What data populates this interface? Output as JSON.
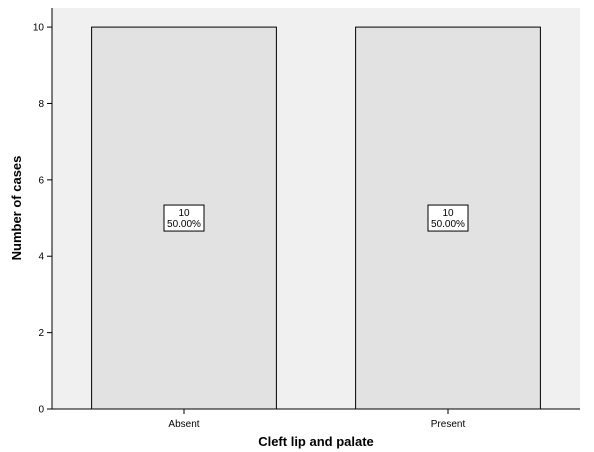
{
  "chart_data": {
    "type": "bar",
    "title": "",
    "xlabel": "Cleft lip and palate",
    "ylabel": "Number of cases",
    "categories": [
      "Absent",
      "Present"
    ],
    "values": [
      10,
      10
    ],
    "percent_labels": [
      "50.00%",
      "50.00%"
    ],
    "count_labels": [
      "10",
      "10"
    ],
    "yticks": [
      0,
      2,
      4,
      6,
      8,
      10
    ],
    "yticks_text": [
      "0",
      "2",
      "4",
      "6",
      "8",
      "10"
    ],
    "ylim": [
      0,
      10.5
    ],
    "grid": false,
    "legend": "none",
    "colors": {
      "plot_background": "#f0f0f0",
      "bar_fill": "#e2e2e2",
      "bar_stroke": "#000000",
      "label_box": "#ffffff"
    }
  }
}
